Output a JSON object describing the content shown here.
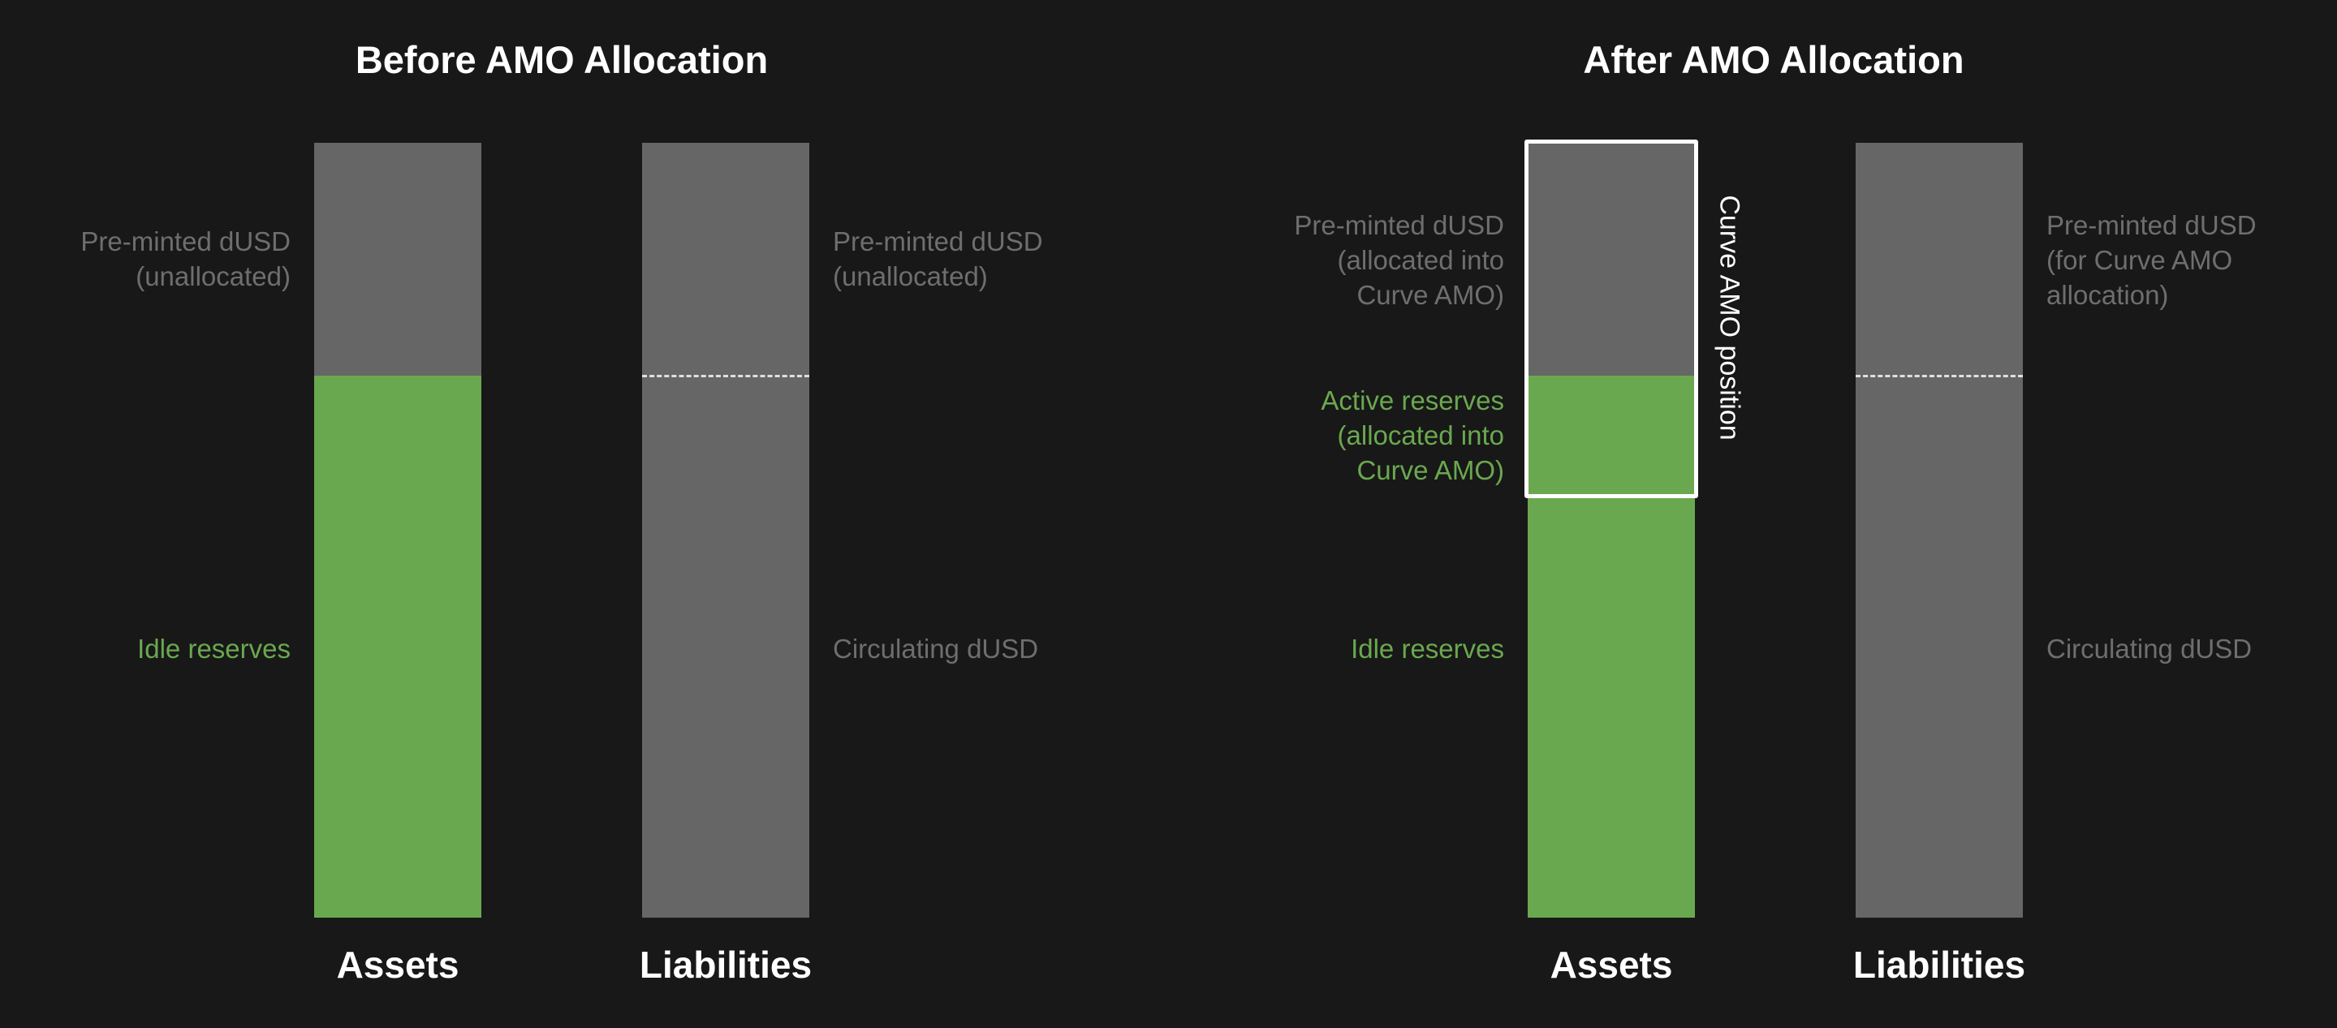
{
  "colors": {
    "background": "#181818",
    "bar_gray": "#666666",
    "reserve_green": "#6aa84f",
    "label_gray": "#6e6e6e",
    "box_outline": "#ffffff"
  },
  "before": {
    "title": "Before AMO Allocation",
    "assets": {
      "label": "Assets",
      "segments": [
        {
          "label": [
            "Pre-minted dUSD",
            "(unallocated)"
          ]
        },
        {
          "label": [
            "Idle reserves"
          ]
        }
      ]
    },
    "liabilities": {
      "label": "Liabilities",
      "segments": [
        {
          "label": [
            "Pre-minted dUSD",
            "(unallocated)"
          ]
        },
        {
          "label": [
            "Circulating dUSD"
          ]
        }
      ]
    }
  },
  "after": {
    "title": "After AMO Allocation",
    "assets": {
      "label": "Assets",
      "segments": [
        {
          "label": [
            "Pre-minted dUSD",
            "(allocated into",
            "Curve AMO)"
          ]
        },
        {
          "label": [
            "Active reserves",
            "(allocated into",
            "Curve AMO)"
          ]
        },
        {
          "label": [
            "Idle reserves"
          ]
        }
      ]
    },
    "position_label": "Curve AMO position",
    "liabilities": {
      "label": "Liabilities",
      "segments": [
        {
          "label": [
            "Pre-minted dUSD",
            "(for Curve AMO",
            "allocation)"
          ]
        },
        {
          "label": [
            "Circulating dUSD"
          ]
        }
      ]
    }
  }
}
